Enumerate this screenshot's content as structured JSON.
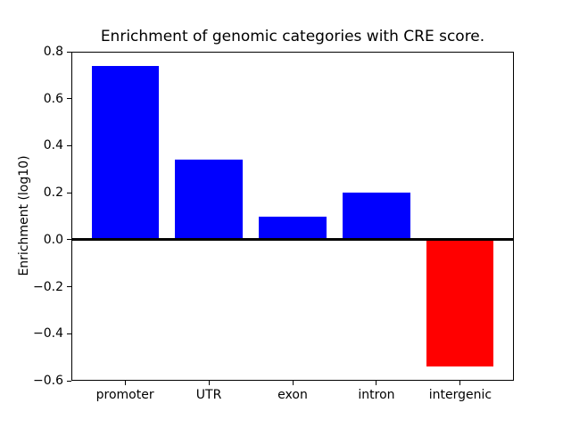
{
  "chart_data": {
    "type": "bar",
    "title": "Enrichment of genomic categories with CRE score.",
    "xlabel": "",
    "ylabel": "Enrichment (log10)",
    "categories": [
      "promoter",
      "UTR",
      "exon",
      "intron",
      "intergenic"
    ],
    "values": [
      0.74,
      0.34,
      0.1,
      0.2,
      -0.54
    ],
    "bar_colors": [
      "#0000ff",
      "#0000ff",
      "#0000ff",
      "#0000ff",
      "#ff0000"
    ],
    "positive_color": "#0000ff",
    "negative_color": "#ff0000",
    "ylim": [
      -0.6,
      0.8
    ],
    "yticks": [
      0.8,
      0.6,
      0.4,
      0.2,
      0.0,
      -0.2,
      -0.4,
      -0.6
    ],
    "ytick_labels": [
      "0.8",
      "0.6",
      "0.4",
      "0.2",
      "0.0",
      "−0.2",
      "−0.4",
      "−0.6"
    ],
    "bar_width_fraction": 0.8,
    "grid": false,
    "zero_line": true,
    "legend": null,
    "axis_color": "#000000",
    "text_color": "#000000",
    "background_color": "#ffffff"
  }
}
